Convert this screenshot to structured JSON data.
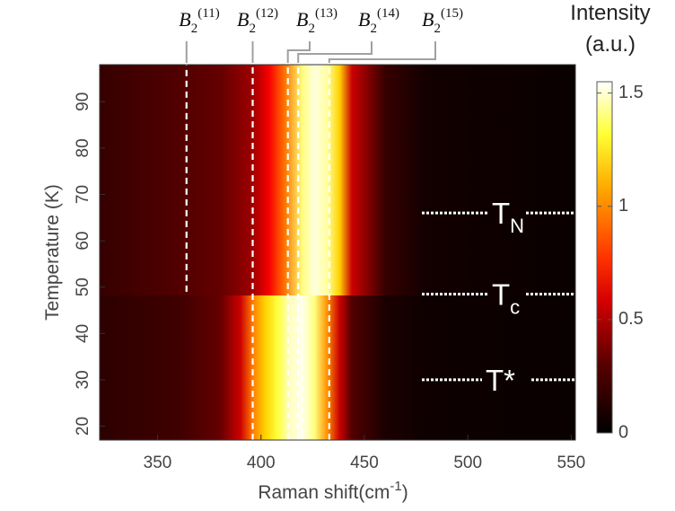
{
  "chart_data": {
    "type": "heatmap",
    "xlabel_main": "Raman shift(cm",
    "xlabel_sup": "-1",
    "xlabel_close": ")",
    "ylabel": "Temperature (K)",
    "x_ticks": [
      350,
      400,
      450,
      500,
      550
    ],
    "y_ticks": [
      20,
      30,
      40,
      50,
      60,
      70,
      80,
      90
    ],
    "xlim": [
      322,
      552
    ],
    "ylim": [
      17,
      98
    ],
    "colorbar": {
      "title_line1": "Intensity",
      "title_line2": "(a.u.)",
      "ticks": [
        {
          "value": 0,
          "label": "0"
        },
        {
          "value": 0.5,
          "label": "0.5"
        },
        {
          "value": 1,
          "label": "1"
        },
        {
          "value": 1.5,
          "label": "1.5"
        }
      ],
      "range": [
        0,
        1.55
      ],
      "colormap": "hot"
    },
    "phonon_modes": [
      {
        "base": "B",
        "sub": "2",
        "sup": "(11)",
        "x": 364,
        "t_min": 49
      },
      {
        "base": "B",
        "sub": "2",
        "sup": "(12)",
        "x": 396,
        "t_min": 17
      },
      {
        "base": "B",
        "sub": "2",
        "sup": "(13)",
        "x": 413,
        "t_min": 17
      },
      {
        "base": "B",
        "sub": "2",
        "sup": "(14)",
        "x": 418,
        "t_min": 17
      },
      {
        "base": "B",
        "sub": "2",
        "sup": "(15)",
        "x": 433,
        "t_min": 17
      }
    ],
    "transitions": [
      {
        "base": "T",
        "sub": "N",
        "temperature": 66
      },
      {
        "base": "T",
        "sub": "c",
        "temperature": 48.5
      },
      {
        "base": "T*",
        "sub": "",
        "temperature": 30
      }
    ],
    "intensity_profile_low_T": {
      "raman_shift": [
        322,
        360,
        380,
        390,
        396,
        402,
        408,
        414,
        420,
        426,
        432,
        438,
        444,
        460,
        480,
        552
      ],
      "intensity": [
        0.1,
        0.14,
        0.22,
        0.45,
        0.85,
        1.05,
        1.25,
        1.45,
        1.52,
        1.35,
        0.9,
        0.45,
        0.18,
        0.06,
        0.03,
        0.02
      ]
    },
    "intensity_profile_high_T": {
      "raman_shift": [
        322,
        360,
        380,
        396,
        404,
        412,
        420,
        426,
        432,
        438,
        444,
        460,
        480,
        552
      ],
      "intensity": [
        0.12,
        0.18,
        0.22,
        0.35,
        0.55,
        0.85,
        1.35,
        1.5,
        1.4,
        1.05,
        0.45,
        0.12,
        0.04,
        0.02
      ]
    }
  }
}
